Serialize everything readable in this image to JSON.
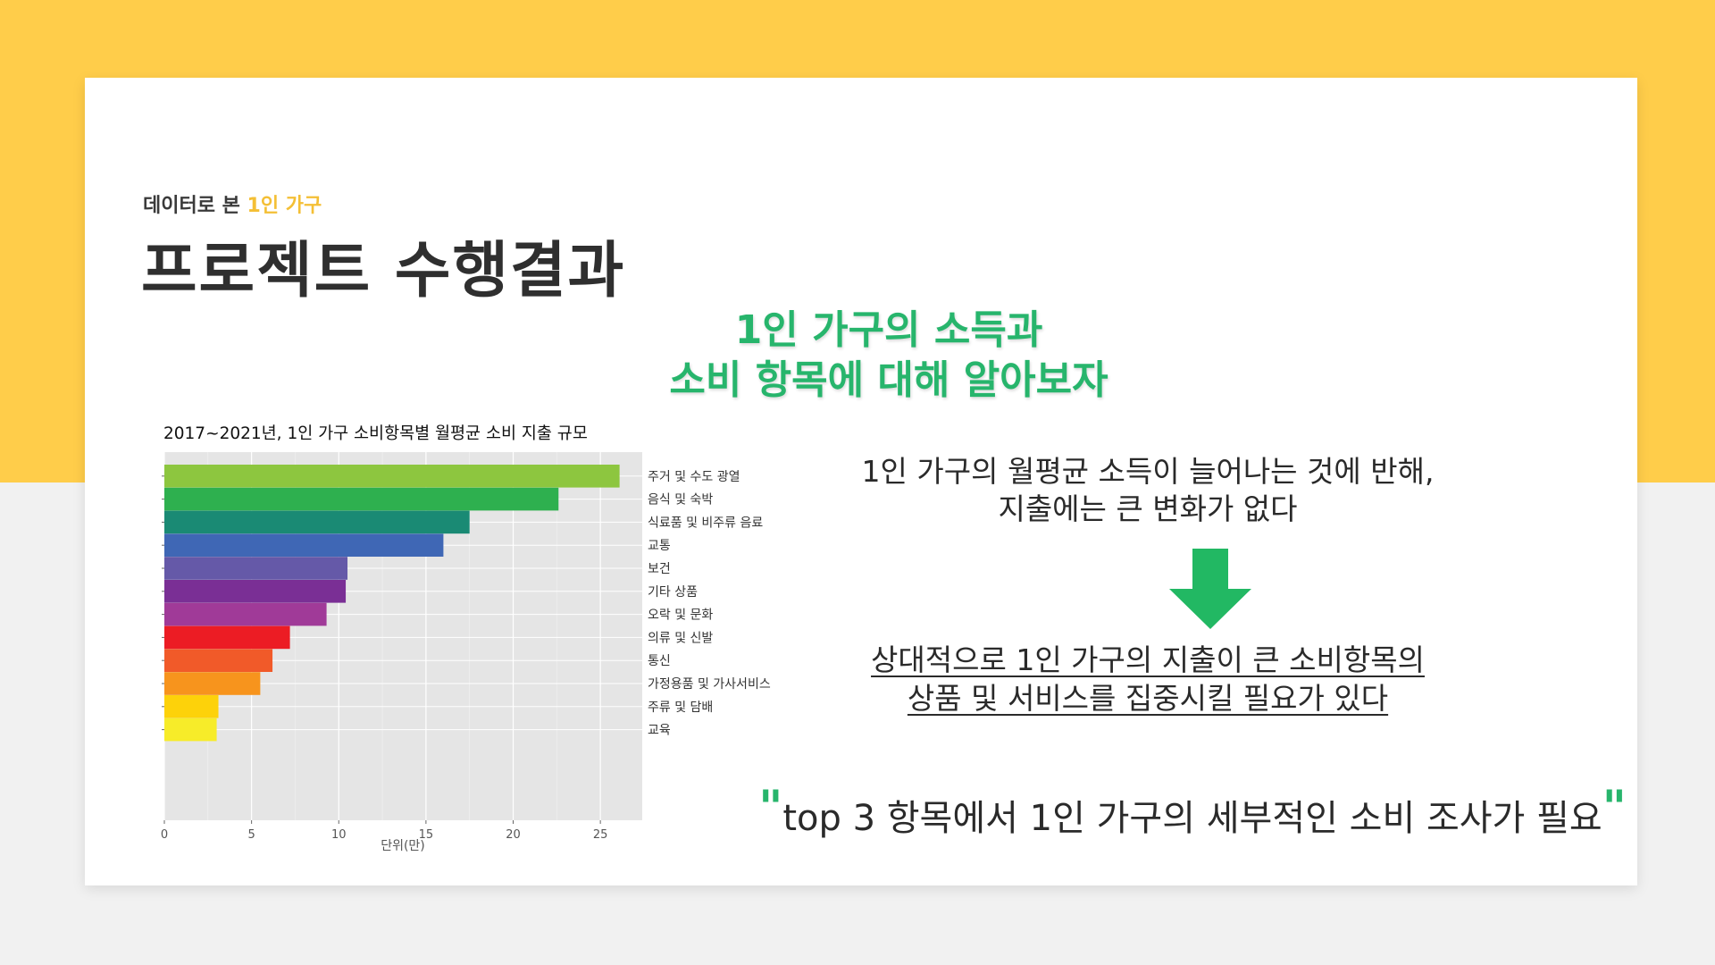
{
  "colors": {
    "background_top": "#ffcd4a",
    "background_bottom": "#f1f1f1",
    "card": "#ffffff",
    "accent_green": "#27b56c",
    "accent_yellow": "#f4bf35"
  },
  "header": {
    "kicker_prefix": "데이터로 본",
    "kicker_highlight": "1인 가구",
    "title": "프로젝트 수행결과"
  },
  "headline": {
    "line1": "1인 가구의 소득과",
    "line2": "소비 항목에 대해 알아보자"
  },
  "note": {
    "line1": "1인 가구의 월평균 소득이 늘어나는 것에 반해,",
    "line2": "지출에는 큰 변화가 없다"
  },
  "arrow": {
    "icon": "arrow-down-icon",
    "color": "#22b863"
  },
  "conclusion": {
    "line1": "상대적으로 1인 가구의 지출이 큰 소비항목의",
    "line2": "상품 및 서비스를 집중시킬 필요가 있다"
  },
  "quote": {
    "open": "\"",
    "text": "top 3 항목에서 1인 가구의 세부적인 소비 조사가 필요",
    "close": "\""
  },
  "chart_data": {
    "type": "bar",
    "orientation": "horizontal",
    "title": "2017~2021년, 1인 가구 소비항목별 월평균 소비 지출 규모",
    "xlabel": "단위(만)",
    "ylabel": "",
    "xlim": [
      0,
      27.4
    ],
    "xticks": [
      0,
      5,
      10,
      15,
      20,
      25
    ],
    "grid": true,
    "background": "#e5e5e5",
    "categories": [
      "주거 및 수도 광열",
      "음식 및 숙박",
      "식료품 및 비주류 음료",
      "교통",
      "보건",
      "기타 상품",
      "오락 및 문화",
      "의류 및 신발",
      "통신",
      "가정용품 및 가사서비스",
      "주류 및 담배",
      "교육"
    ],
    "values": [
      26.1,
      22.6,
      17.5,
      16.0,
      10.5,
      10.4,
      9.3,
      7.2,
      6.2,
      5.5,
      3.1,
      3.0
    ],
    "colors": [
      "#8dc63f",
      "#2eb04f",
      "#1a8a74",
      "#3f67b5",
      "#6559a8",
      "#7a2f95",
      "#a03a98",
      "#ec1c24",
      "#f15a29",
      "#f7941d",
      "#fdd20a",
      "#f7ec29"
    ]
  }
}
